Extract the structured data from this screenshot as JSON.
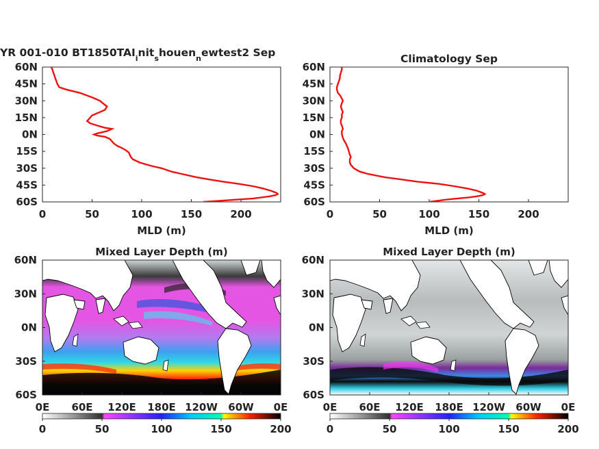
{
  "chart_data": [
    {
      "type": "line",
      "title": "YR 001-010 BT1850TAI_init_shouen_newtest2 Sep",
      "title_parts": {
        "a": "YR 001-010 BT1850TAI",
        "b": "i",
        "c": "nit",
        "d": "s",
        "e": "houen",
        "f": "n",
        "g": "ewtest2 Sep"
      },
      "xlabel": "MLD (m)",
      "ylabel": "",
      "xlim": [
        0,
        240
      ],
      "ylim": [
        -60,
        60
      ],
      "xticks": [
        "0",
        "50",
        "100",
        "150",
        "200"
      ],
      "yticks": [
        "60N",
        "45N",
        "30N",
        "15N",
        "0N",
        "15S",
        "30S",
        "45S",
        "60S"
      ],
      "series": [
        {
          "color": "#ee1111",
          "lat": [
            60,
            58,
            55,
            50,
            45,
            42,
            40,
            37,
            33,
            30,
            27,
            25,
            22,
            20,
            17,
            15,
            12,
            10,
            8,
            6,
            5,
            3,
            1,
            0,
            -1,
            -2,
            -4,
            -6,
            -8,
            -10,
            -12,
            -14,
            -16,
            -18,
            -20,
            -22,
            -25,
            -28,
            -30,
            -33,
            -35,
            -38,
            -40,
            -42,
            -44,
            -46,
            -48,
            -50,
            -52,
            -53,
            -54,
            -55,
            -57,
            -58,
            -59,
            -60
          ],
          "mld": [
            9,
            10,
            11,
            13,
            15,
            17,
            24,
            38,
            50,
            58,
            62,
            65,
            63,
            58,
            50,
            48,
            45,
            48,
            55,
            63,
            70,
            65,
            55,
            52,
            55,
            63,
            68,
            70,
            72,
            75,
            80,
            84,
            87,
            88,
            89,
            91,
            98,
            110,
            120,
            130,
            140,
            155,
            168,
            182,
            198,
            212,
            222,
            230,
            236,
            237,
            235,
            229,
            212,
            195,
            178,
            162
          ]
        }
      ]
    },
    {
      "type": "line",
      "title": "Climatology Sep",
      "xlabel": "MLD (m)",
      "ylabel": "",
      "xlim": [
        0,
        240
      ],
      "ylim": [
        -60,
        60
      ],
      "xticks": [
        "0",
        "50",
        "100",
        "150",
        "200"
      ],
      "yticks": [
        "60N",
        "45N",
        "30N",
        "15N",
        "0N",
        "15S",
        "30S",
        "45S",
        "60S"
      ],
      "series": [
        {
          "color": "#ee1111",
          "lat": [
            60,
            58,
            55,
            52,
            50,
            45,
            42,
            40,
            37,
            35,
            32,
            30,
            28,
            25,
            22,
            20,
            18,
            15,
            13,
            10,
            8,
            5,
            3,
            0,
            -3,
            -5,
            -8,
            -10,
            -12,
            -15,
            -18,
            -20,
            -22,
            -25,
            -27,
            -30,
            -33,
            -35,
            -38,
            -40,
            -42,
            -44,
            -46,
            -48,
            -50,
            -52,
            -53,
            -54,
            -55,
            -56,
            -57,
            -58,
            -59,
            -60
          ],
          "mld": [
            12,
            12,
            11,
            10,
            10,
            8,
            7,
            7,
            8,
            10,
            12,
            13,
            12,
            11,
            12,
            13,
            12,
            12,
            11,
            11,
            12,
            13,
            12,
            12,
            13,
            14,
            16,
            17,
            18,
            19,
            20,
            21,
            20,
            20,
            21,
            24,
            30,
            38,
            55,
            72,
            88,
            110,
            125,
            138,
            148,
            154,
            156,
            154,
            148,
            140,
            128,
            117,
            108,
            100
          ]
        }
      ]
    },
    {
      "type": "heatmap",
      "title": "Mixed Layer Depth (m)",
      "xticks": [
        "0E",
        "60E",
        "120E",
        "180E",
        "120W",
        "60W",
        "0E"
      ],
      "yticks": [
        "60N",
        "30N",
        "0N",
        "30S",
        "60S"
      ],
      "lon_range": [
        0,
        360
      ],
      "lat_range": [
        -60,
        60
      ],
      "colorbar": {
        "ticks": [
          "0",
          "50",
          "100",
          "150",
          "200"
        ],
        "range": [
          0,
          200
        ],
        "colormap": [
          "#ffffff",
          "#a0a0a0",
          "#303030",
          "#ff33ff",
          "#0000ff",
          "#00eeff",
          "#ffff00",
          "#ff0000",
          "#000000"
        ]
      }
    },
    {
      "type": "heatmap",
      "title": "Mixed Layer Depth (m)",
      "xticks": [
        "0E",
        "60E",
        "120E",
        "180E",
        "120W",
        "60W",
        "0E"
      ],
      "yticks": [
        "60N",
        "30N",
        "0N",
        "30S",
        "60S"
      ],
      "lon_range": [
        0,
        360
      ],
      "lat_range": [
        -60,
        60
      ],
      "colorbar": {
        "ticks": [
          "0",
          "50",
          "100",
          "150",
          "200"
        ],
        "range": [
          0,
          200
        ],
        "colormap": [
          "#ffffff",
          "#a0a0a0",
          "#303030",
          "#ff33ff",
          "#0000ff",
          "#00eeff",
          "#ffff00",
          "#ff0000",
          "#000000"
        ]
      }
    }
  ]
}
